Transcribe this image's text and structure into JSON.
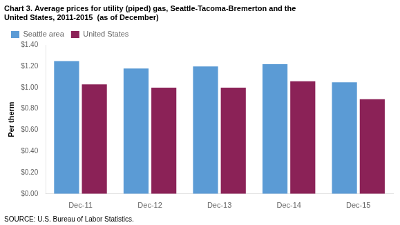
{
  "chart_data": {
    "type": "bar",
    "title": [
      "Chart 3. Average prices for utility (piped) gas, Seattle-Tacoma-Bremerton and the",
      "United States, 2011-2015  (as of December)"
    ],
    "ylabel": "Per therm",
    "annotations": [
      "SOURCE: U.S. Bureau of Labor Statistics."
    ],
    "categories": [
      "Dec-11",
      "Dec-12",
      "Dec-13",
      "Dec-14",
      "Dec-15"
    ],
    "series": [
      {
        "name": "Seattle area",
        "color": "#5B9BD5",
        "values": [
          1.25,
          1.18,
          1.2,
          1.22,
          1.05
        ]
      },
      {
        "name": "United States",
        "color": "#8B2257",
        "values": [
          1.03,
          1.0,
          1.0,
          1.06,
          0.89
        ]
      }
    ],
    "ylim": [
      0,
      1.4
    ],
    "yticks": [
      {
        "value": 0.0,
        "label": "$0.00"
      },
      {
        "value": 0.2,
        "label": "$0.20"
      },
      {
        "value": 0.4,
        "label": "$0.40"
      },
      {
        "value": 0.6,
        "label": "$0.60"
      },
      {
        "value": 0.8,
        "label": "$0.80"
      },
      {
        "value": 1.0,
        "label": "$1.00"
      },
      {
        "value": 1.2,
        "label": "$1.20"
      },
      {
        "value": 1.4,
        "label": "$1.40"
      }
    ],
    "grid": false,
    "legend": "top"
  }
}
